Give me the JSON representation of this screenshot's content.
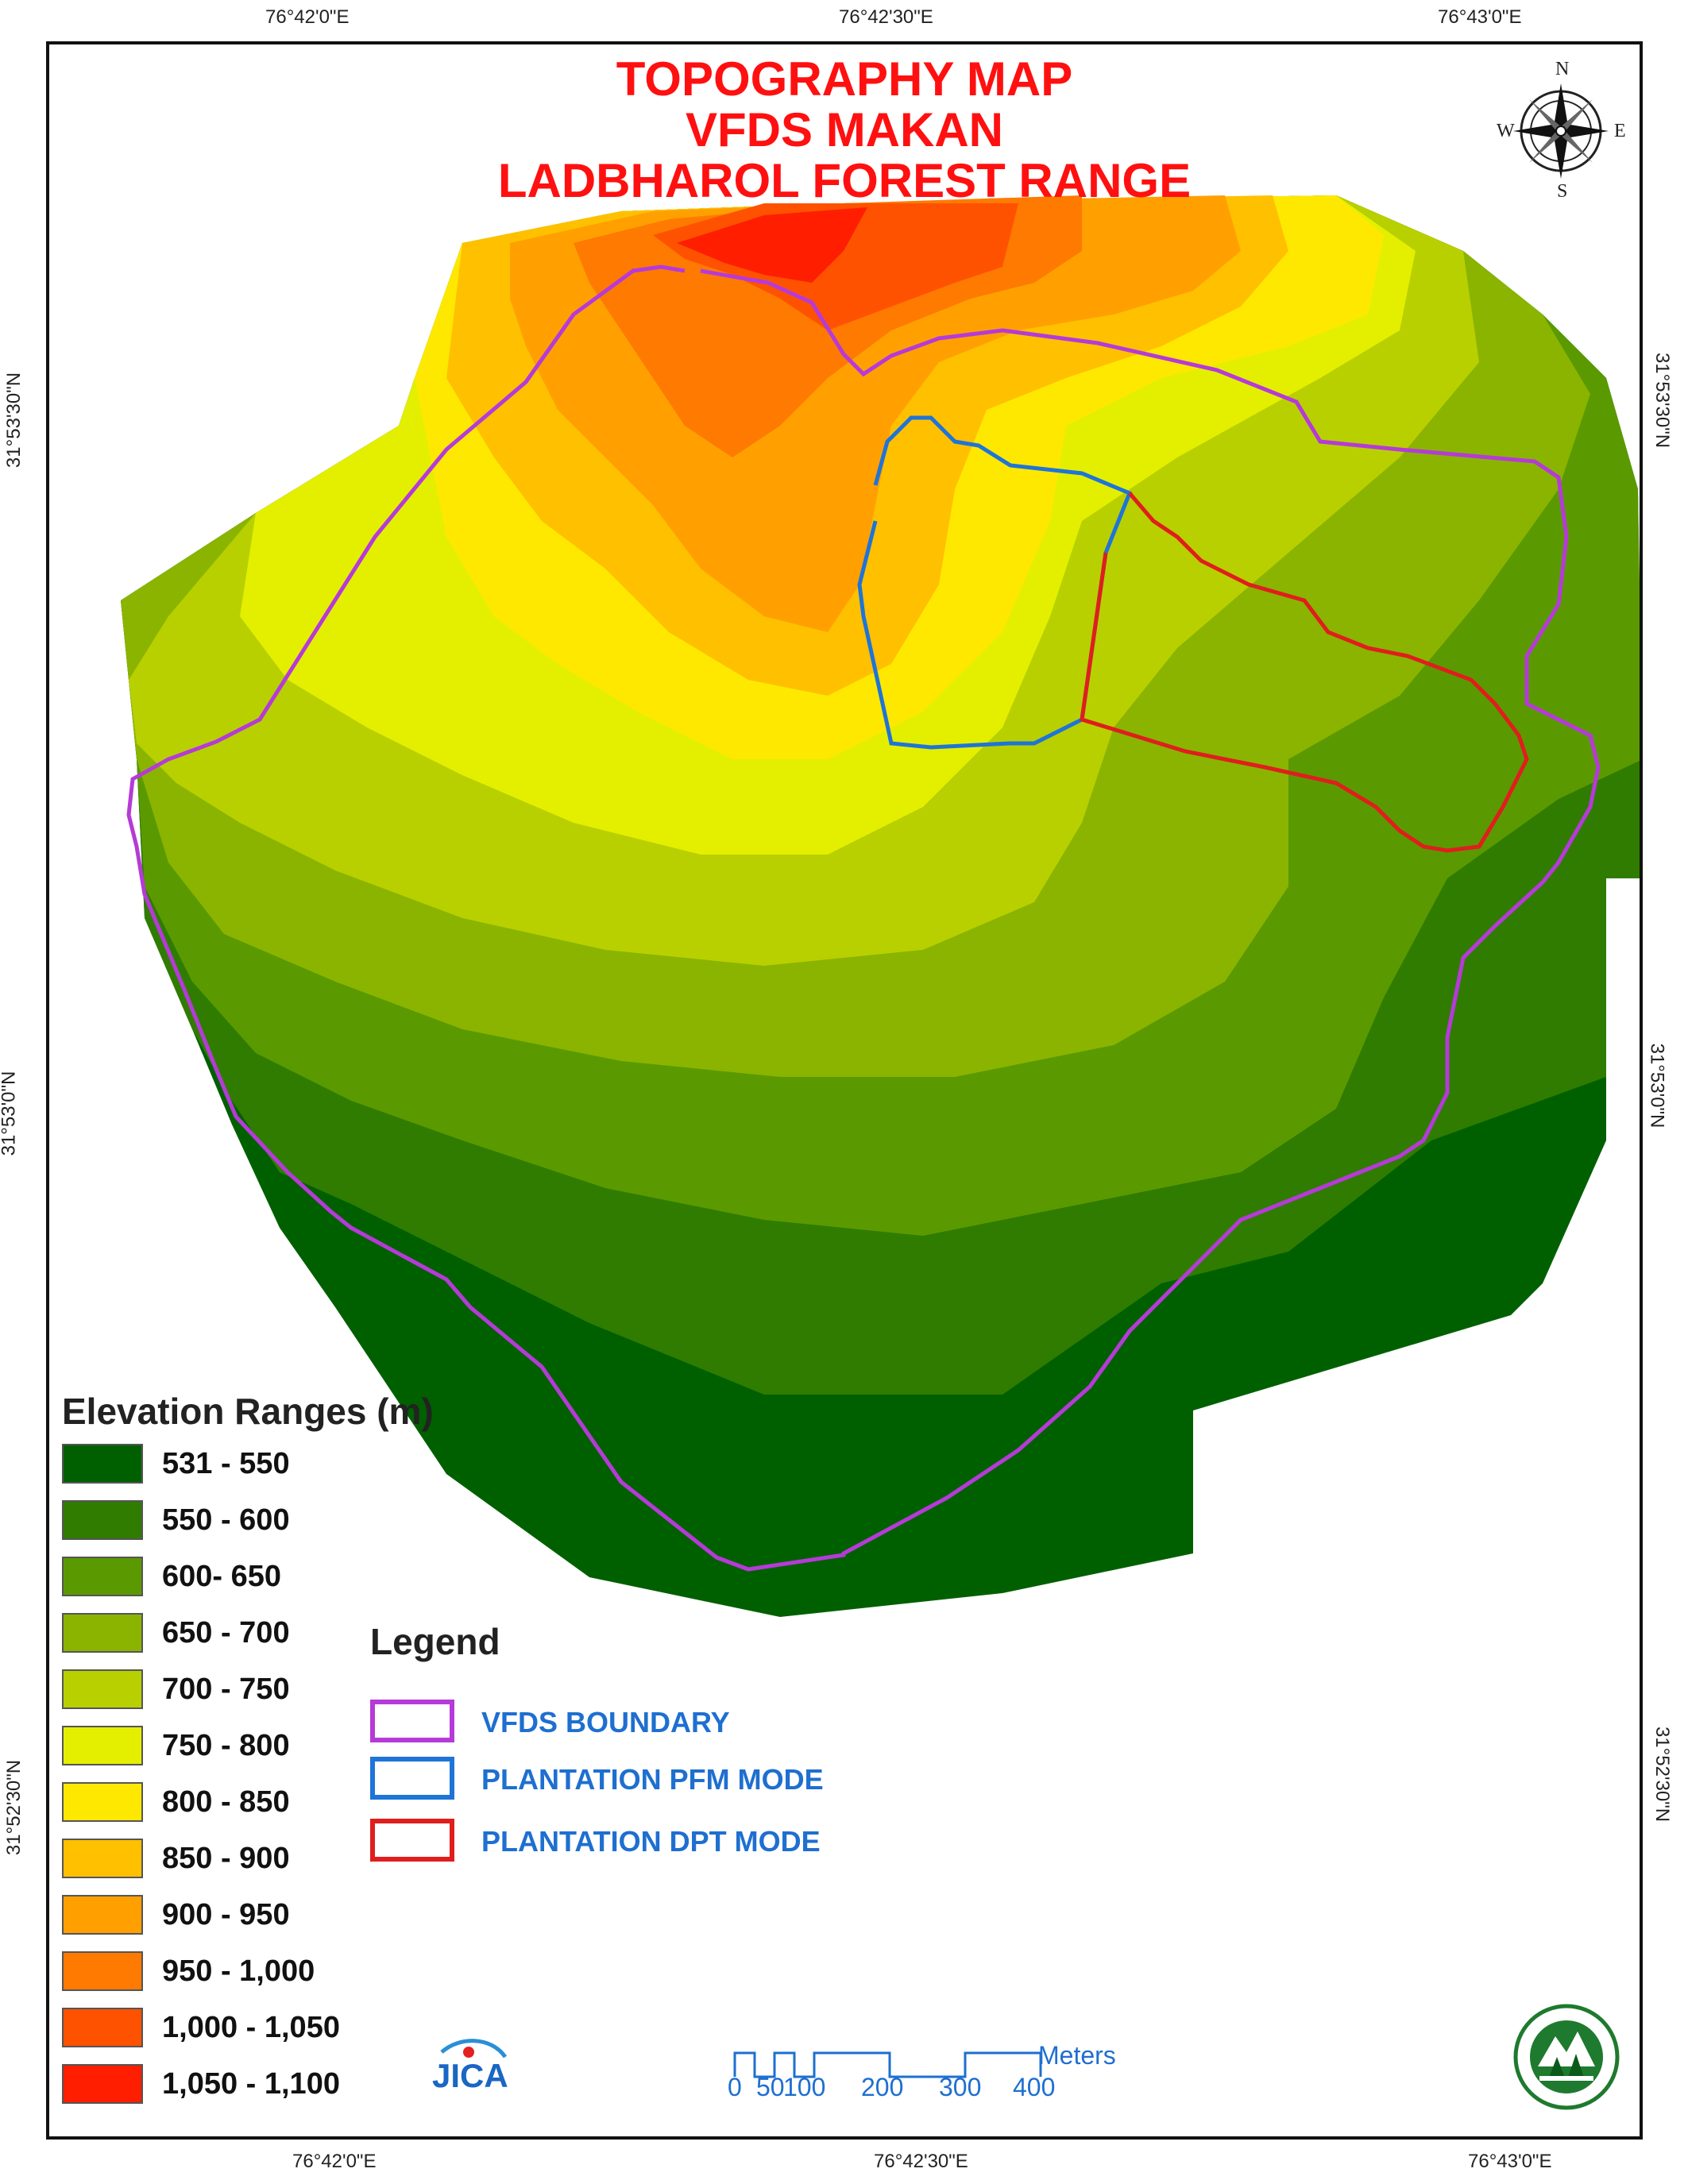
{
  "title": {
    "line1": "TOPOGRAPHY MAP",
    "line2": "VFDS MAKAN",
    "line3": "LADBHAROL FOREST RANGE"
  },
  "coordinates": {
    "top": [
      "76°42'0\"E",
      "76°42'30\"E",
      "76°43'0\"E"
    ],
    "bottom": [
      "76°42'0\"E",
      "76°42'30\"E",
      "76°43'0\"E"
    ],
    "left": [
      "31°53'30\"N",
      "31°53'0\"N",
      "31°52'30\"N"
    ],
    "right": [
      "31°53'30\"N",
      "31°53'0\"N",
      "31°52'30\"N"
    ]
  },
  "compass": {
    "n": "N",
    "s": "S",
    "e": "E",
    "w": "W",
    "icon": "compass-rose-icon"
  },
  "elevation_legend": {
    "title": "Elevation Ranges (m)",
    "items": [
      {
        "label": "531 - 550",
        "color": "#006000"
      },
      {
        "label": "550 - 600",
        "color": "#2f7c00"
      },
      {
        "label": "600- 650",
        "color": "#5a9a00"
      },
      {
        "label": "650 - 700",
        "color": "#8ab400"
      },
      {
        "label": "700 - 750",
        "color": "#b8d000"
      },
      {
        "label": "750 - 800",
        "color": "#e4ef00"
      },
      {
        "label": "800 - 850",
        "color": "#ffe800"
      },
      {
        "label": "850 - 900",
        "color": "#ffc000"
      },
      {
        "label": "900 - 950",
        "color": "#ffa000"
      },
      {
        "label": "950 - 1,000",
        "color": "#ff7a00"
      },
      {
        "label": "1,000 - 1,050",
        "color": "#ff5200"
      },
      {
        "label": "1,050 - 1,100",
        "color": "#ff1e00"
      }
    ]
  },
  "legend": {
    "title": "Legend",
    "items": [
      {
        "label": "VFDS BOUNDARY",
        "color": "#b63ad8"
      },
      {
        "label": "PLANTATION PFM MODE",
        "color": "#1e74d8"
      },
      {
        "label": "PLANTATION DPT MODE",
        "color": "#e01e1e"
      }
    ]
  },
  "scale_bar": {
    "unit": "Meters",
    "ticks": [
      "0",
      "50",
      "100",
      "200",
      "300",
      "400"
    ],
    "color": "#1e6fd0"
  },
  "logos": {
    "jica": "JICA",
    "seal_icon": "forest-department-seal-icon"
  }
}
